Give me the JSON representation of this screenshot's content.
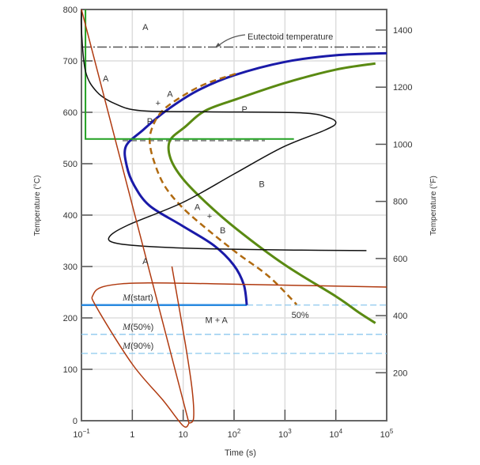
{
  "chart_data": {
    "type": "line",
    "xlabel": "Time (s)",
    "ylabel": "Temperature (°C)",
    "ylabel_right": "Temperature (°F)",
    "x_scale": "log",
    "xlim": [
      0.1,
      100000
    ],
    "ylim": [
      0,
      800
    ],
    "x_ticks": [
      {
        "v": 0.1,
        "b": "10",
        "e": "−1"
      },
      {
        "v": 1,
        "b": "1",
        "e": ""
      },
      {
        "v": 10,
        "b": "10",
        "e": ""
      },
      {
        "v": 100,
        "b": "10",
        "e": "2"
      },
      {
        "v": 1000,
        "b": "10",
        "e": "3"
      },
      {
        "v": 10000,
        "b": "10",
        "e": "4"
      },
      {
        "v": 100000,
        "b": "10",
        "e": "5"
      }
    ],
    "y_ticks": [
      0,
      100,
      200,
      300,
      400,
      500,
      600,
      700,
      800
    ],
    "y_right_ticks": [
      200,
      400,
      600,
      800,
      1000,
      1200,
      1400
    ],
    "grid": true,
    "eutectoid": {
      "label": "Eutectoid temperature",
      "temp": 727
    },
    "martensite_lines": [
      {
        "label_m": "M",
        "label": "(start)",
        "temp": 225
      },
      {
        "label_m": "M",
        "label": "(50%)",
        "temp": 168
      },
      {
        "label_m": "M",
        "label": "(90%)",
        "temp": 131
      }
    ],
    "series": [
      {
        "role": "start",
        "color": "#1a1aa8",
        "points": [
          [
            100000,
            715
          ],
          [
            10000,
            711
          ],
          [
            1000,
            698
          ],
          [
            100,
            672
          ],
          [
            19,
            642
          ],
          [
            4.6,
            603
          ],
          [
            1.6,
            565
          ],
          [
            0.75,
            534
          ],
          [
            0.78,
            495
          ],
          [
            1.1,
            457
          ],
          [
            2.2,
            418
          ],
          [
            9.3,
            380
          ],
          [
            40,
            341
          ],
          [
            98,
            303
          ],
          [
            155,
            265
          ],
          [
            178,
            225
          ]
        ]
      },
      {
        "role": "50%",
        "label": "50%",
        "color": "#b06a10",
        "dashed": true,
        "points": [
          [
            107,
            675
          ],
          [
            27,
            655
          ],
          [
            9.5,
            631
          ],
          [
            3.9,
            603
          ],
          [
            2.5,
            572
          ],
          [
            2.2,
            542
          ],
          [
            2.7,
            503
          ],
          [
            4.3,
            457
          ],
          [
            9.6,
            415
          ],
          [
            30,
            372
          ],
          [
            115,
            326
          ],
          [
            490,
            280
          ],
          [
            1700,
            226
          ]
        ]
      },
      {
        "role": "end",
        "color": "#5a8a12",
        "points": [
          [
            60000,
            695
          ],
          [
            10000,
            683
          ],
          [
            1000,
            657
          ],
          [
            115,
            626
          ],
          [
            27,
            603
          ],
          [
            11,
            572
          ],
          [
            5.5,
            545
          ],
          [
            5.6,
            511
          ],
          [
            9.6,
            472
          ],
          [
            27,
            426
          ],
          [
            115,
            372
          ],
          [
            1000,
            303
          ],
          [
            10000,
            242
          ],
          [
            28000,
            211
          ],
          [
            60000,
            190
          ]
        ]
      }
    ],
    "bainite_dash_temp": 545,
    "region_labels": [
      {
        "text": "A",
        "t": 1.8,
        "T": 760
      },
      {
        "text": "A",
        "t": 0.3,
        "T": 660
      },
      {
        "text": "A",
        "t": 5.5,
        "T": 630
      },
      {
        "text": "+",
        "t": 3.2,
        "T": 612
      },
      {
        "text": "P",
        "t": 2.2,
        "T": 577
      },
      {
        "text": "P",
        "t": 160,
        "T": 600
      },
      {
        "text": "B",
        "t": 350,
        "T": 455
      },
      {
        "text": "A",
        "t": 19,
        "T": 410
      },
      {
        "text": "+",
        "t": 33,
        "T": 392
      },
      {
        "text": "B",
        "t": 60,
        "T": 365
      },
      {
        "text": "A",
        "t": 1.8,
        "T": 305
      },
      {
        "text": "M + A",
        "t": 45,
        "T": 190
      },
      {
        "text": "50%",
        "t": 2000,
        "T": 200
      }
    ],
    "annotations": [
      {
        "color": "#22a022",
        "points": [
          [
            0.12,
            800
          ],
          [
            0.12,
            548
          ],
          [
            1500,
            548
          ]
        ]
      },
      {
        "color": "#111111",
        "smooth": true,
        "points": [
          [
            0.1,
            800
          ],
          [
            0.1,
            760
          ],
          [
            0.12,
            680
          ],
          [
            0.2,
            640
          ],
          [
            0.45,
            617
          ],
          [
            1.5,
            603
          ],
          [
            30,
            601
          ],
          [
            2000,
            599
          ],
          [
            7000,
            590
          ],
          [
            10000,
            579
          ],
          [
            6000,
            565
          ],
          [
            900,
            532
          ],
          [
            100,
            480
          ],
          [
            10,
            425
          ],
          [
            0.8,
            380
          ],
          [
            0.35,
            357
          ],
          [
            0.5,
            345
          ],
          [
            3,
            338
          ],
          [
            50,
            334
          ],
          [
            1500,
            332
          ],
          [
            40000,
            331
          ]
        ]
      },
      {
        "color": "#b03a10",
        "smooth": false,
        "points": [
          [
            0.1,
            800
          ],
          [
            13,
            -5
          ]
        ]
      },
      {
        "color": "#b03a10",
        "smooth": true,
        "points": [
          [
            13,
            -5
          ],
          [
            10,
            -10
          ],
          [
            4,
            40
          ],
          [
            1,
            110
          ],
          [
            0.2,
            220
          ],
          [
            0.17,
            245
          ],
          [
            0.3,
            262
          ],
          [
            2,
            268
          ],
          [
            200,
            265
          ],
          [
            100000,
            260
          ]
        ]
      },
      {
        "color": "#b03a10",
        "smooth": true,
        "points": [
          [
            13,
            -5
          ],
          [
            16,
            5
          ],
          [
            15,
            60
          ],
          [
            11,
            150
          ],
          [
            6,
            300
          ]
        ]
      }
    ]
  }
}
